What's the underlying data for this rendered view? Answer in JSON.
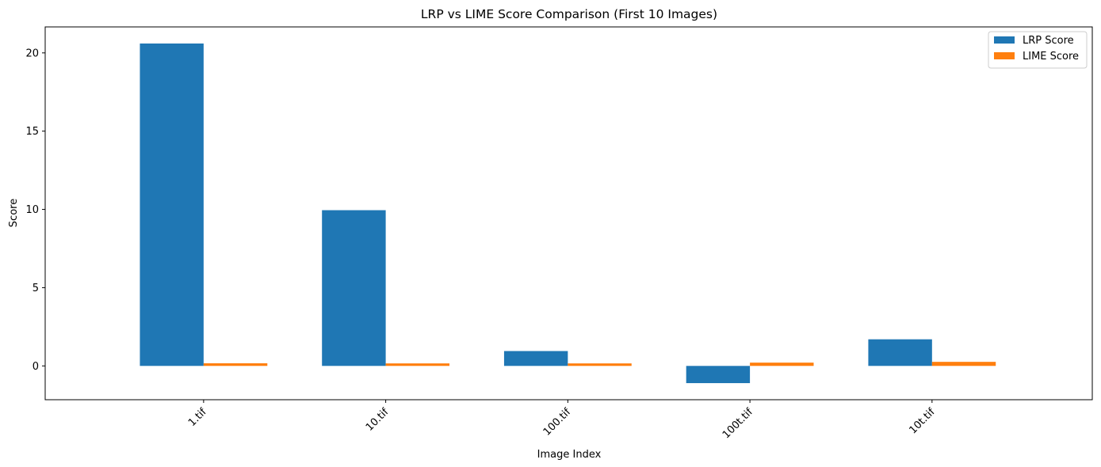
{
  "chart_data": {
    "type": "bar",
    "title": "LRP vs LIME Score Comparison (First 10 Images)",
    "xlabel": "Image Index",
    "ylabel": "Score",
    "categories": [
      "1.tif",
      "10.tif",
      "100.tif",
      "100t.tif",
      "10t.tif"
    ],
    "series": [
      {
        "name": "LRP Score",
        "color": "#1f77b4",
        "values": [
          20.6,
          9.95,
          0.95,
          -1.1,
          1.7
        ]
      },
      {
        "name": "LIME Score",
        "color": "#ff7f0e",
        "values": [
          0.17,
          0.16,
          0.16,
          0.21,
          0.26
        ]
      }
    ],
    "ylim": [
      -2.16,
      21.66
    ],
    "yticks": [
      0,
      5,
      10,
      15,
      20
    ],
    "ytick_labels": [
      "0",
      "5",
      "10",
      "15",
      "20"
    ],
    "grid": false,
    "legend_position": "top-right"
  }
}
